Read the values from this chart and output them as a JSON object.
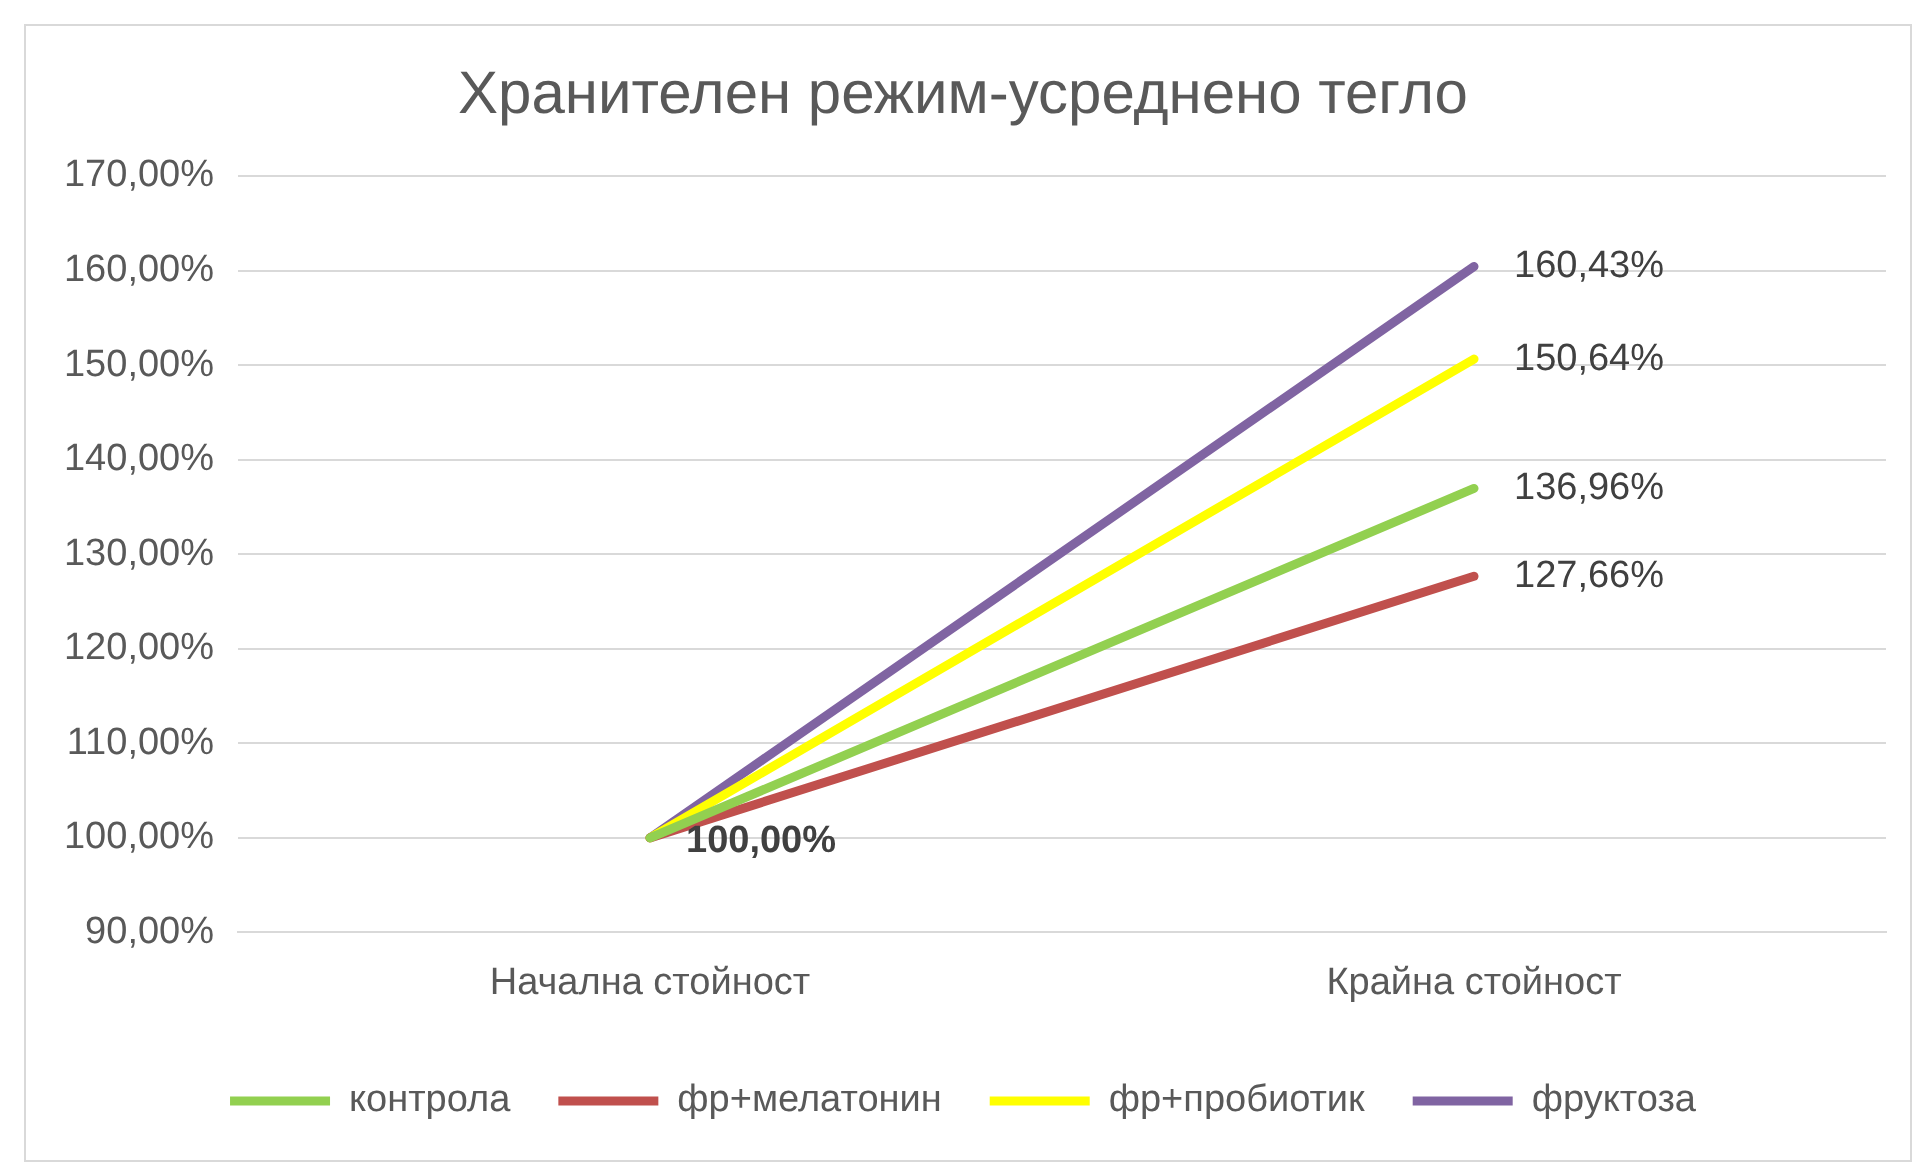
{
  "chart_data": {
    "type": "line",
    "title": "Хранителен режим-усреднено тегло",
    "categories": [
      "Начална стойност",
      "Крайна стойност"
    ],
    "series": [
      {
        "name": "контрола",
        "color": "#92d050",
        "values": [
          100,
          136.96
        ],
        "value_labels": [
          "100,00%",
          "136,96%"
        ]
      },
      {
        "name": "фр+мелатонин",
        "color": "#c0504d",
        "values": [
          100,
          127.66
        ],
        "value_labels": [
          null,
          "127,66%"
        ]
      },
      {
        "name": "фр+пробиотик",
        "color": "#ffff00",
        "values": [
          100,
          150.64
        ],
        "value_labels": [
          null,
          "150,64%"
        ]
      },
      {
        "name": "фруктоза",
        "color": "#8064a2",
        "values": [
          100,
          160.43
        ],
        "value_labels": [
          null,
          "160,43%"
        ]
      }
    ],
    "ylim": [
      90,
      170
    ],
    "yticks": [
      {
        "value": 90,
        "label": "90,00%"
      },
      {
        "value": 100,
        "label": "100,00%"
      },
      {
        "value": 110,
        "label": "110,00%"
      },
      {
        "value": 120,
        "label": "120,00%"
      },
      {
        "value": 130,
        "label": "130,00%"
      },
      {
        "value": 140,
        "label": "140,00%"
      },
      {
        "value": 150,
        "label": "150,00%"
      },
      {
        "value": 160,
        "label": "160,00%"
      },
      {
        "value": 170,
        "label": "170,00%"
      }
    ],
    "grid": "y",
    "legend": "bottom",
    "marker": "none",
    "line_style": "solid"
  }
}
